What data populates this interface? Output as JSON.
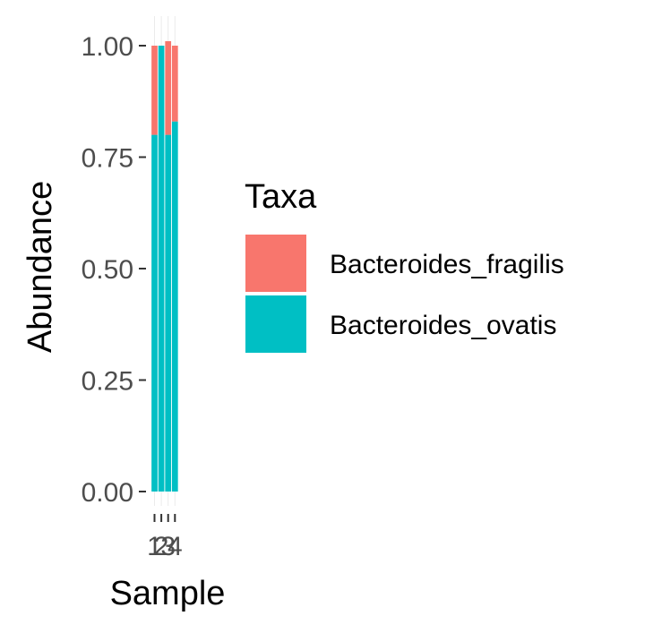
{
  "chart_data": {
    "type": "bar",
    "stacked": true,
    "xlabel": "Sample",
    "ylabel": "Abundance",
    "categories": [
      "1",
      "2",
      "3",
      "4"
    ],
    "ylim": [
      0,
      1.0
    ],
    "yticks": [
      "0.00",
      "0.25",
      "0.50",
      "0.75",
      "1.00"
    ],
    "series": [
      {
        "name": "Bacteroides_ovatis",
        "color": "#00BFC4",
        "values": [
          0.8,
          1.0,
          0.8,
          0.83
        ]
      },
      {
        "name": "Bacteroides_fragilis",
        "color": "#F8766D",
        "values": [
          0.2,
          0.0,
          0.21,
          0.17
        ]
      }
    ],
    "legend": {
      "title": "Taxa",
      "position": "right",
      "items": [
        {
          "label": "Bacteroides_fragilis",
          "color": "#F8766D"
        },
        {
          "label": "Bacteroides_ovatis",
          "color": "#00BFC4"
        }
      ]
    },
    "grid": true
  }
}
